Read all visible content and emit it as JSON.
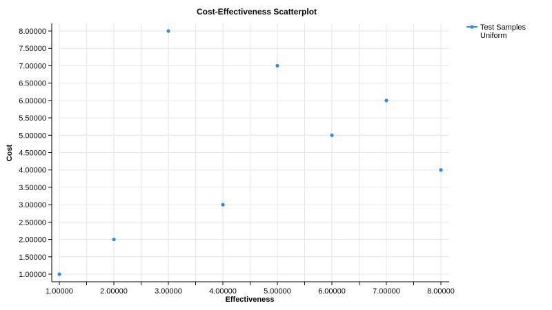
{
  "chart_data": {
    "type": "scatter",
    "title": "Cost-Effectiveness Scatterplot",
    "xlabel": "Effectiveness",
    "ylabel": "Cost",
    "xlim": [
      1,
      8
    ],
    "ylim": [
      1,
      8
    ],
    "x_ticks": [
      1,
      2,
      3,
      4,
      5,
      6,
      7,
      8
    ],
    "y_ticks": [
      1,
      1.5,
      2,
      2.5,
      3,
      3.5,
      4,
      4.5,
      5,
      5.5,
      6,
      6.5,
      7,
      7.5,
      8
    ],
    "tick_format_decimals": 5,
    "grid": true,
    "legend_position": "top-right",
    "series": [
      {
        "name_lines": [
          "Test Samples",
          "Uniform"
        ],
        "color": "#2b8de9",
        "points": [
          {
            "x": 1,
            "y": 1
          },
          {
            "x": 2,
            "y": 2
          },
          {
            "x": 3,
            "y": 8
          },
          {
            "x": 4,
            "y": 3
          },
          {
            "x": 5,
            "y": 7
          },
          {
            "x": 6,
            "y": 5
          },
          {
            "x": 7,
            "y": 6
          },
          {
            "x": 8,
            "y": 4
          }
        ]
      }
    ]
  }
}
